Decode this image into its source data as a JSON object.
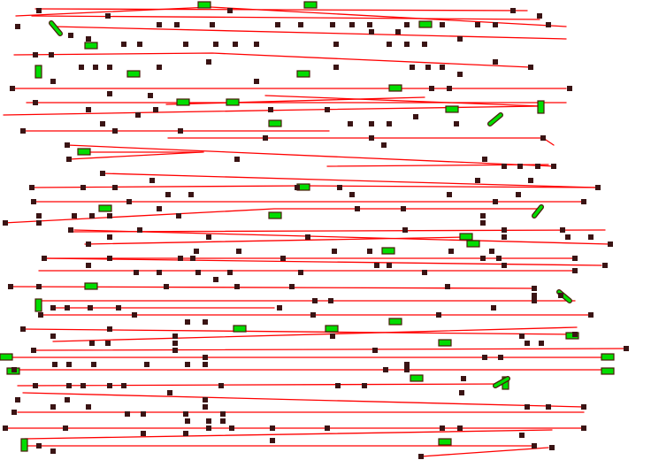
{
  "diagram": {
    "kind": "wire-routing-net",
    "colors": {
      "background": "#ffffff",
      "wire": "#ff0000",
      "pin": "#3a1414",
      "pad_fill": "#00dd00",
      "pad_outline": "#4a1a0a"
    }
  }
}
